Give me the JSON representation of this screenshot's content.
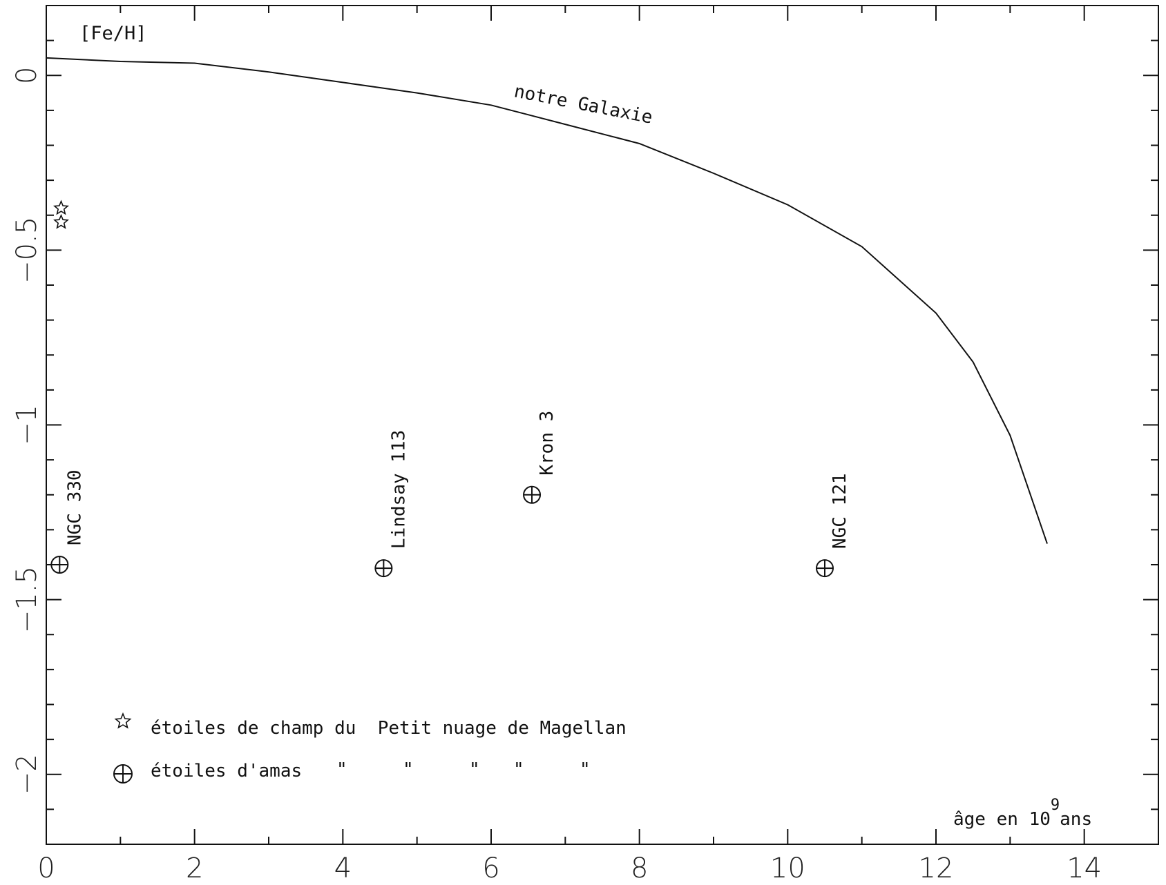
{
  "chart_data": {
    "type": "line",
    "ylabel": "[Fe/H]",
    "xlabel": "âge en 10⁹ans",
    "xlabel_parts": {
      "pre": "âge en 10",
      "exp": "9",
      "post": "ans"
    },
    "xlim": [
      0,
      15
    ],
    "ylim": [
      -2.2,
      0.2
    ],
    "x_ticks": [
      0,
      2,
      4,
      6,
      8,
      10,
      12,
      14
    ],
    "x_tick_labels": [
      "0",
      "2",
      "4",
      "6",
      "8",
      "10",
      "12",
      "14"
    ],
    "y_ticks": [
      0,
      -0.5,
      -1,
      -1.5,
      -2
    ],
    "y_tick_labels": [
      "0",
      "−0.5",
      "−1",
      "−1.5",
      "−2"
    ],
    "grid": false,
    "series": [
      {
        "name": "notre Galaxie",
        "x": [
          0,
          1,
          2,
          3,
          4,
          5,
          6,
          7,
          8,
          9,
          10,
          11,
          12,
          12.5,
          13,
          13.5
        ],
        "y": [
          0.05,
          0.04,
          0.035,
          0.01,
          -0.02,
          -0.05,
          -0.085,
          -0.14,
          -0.195,
          -0.28,
          -0.37,
          -0.49,
          -0.68,
          -0.82,
          -1.03,
          -1.34
        ]
      }
    ],
    "field_stars": {
      "label": "étoiles de champ du  Petit nuage de Magellan",
      "points": [
        {
          "x": 0.2,
          "y": -0.38
        },
        {
          "x": 0.2,
          "y": -0.42
        }
      ]
    },
    "clusters": {
      "label": "étoiles d'amas",
      "ditto": [
        "\"",
        "\"",
        "\"",
        "\"",
        "\""
      ],
      "points": [
        {
          "name": "NGC 330",
          "x": 0.18,
          "y": -1.4
        },
        {
          "name": "Lindsay 113",
          "x": 4.55,
          "y": -1.41
        },
        {
          "name": "Kron 3",
          "x": 6.55,
          "y": -1.2
        },
        {
          "name": "NGC 121",
          "x": 10.5,
          "y": -1.41
        }
      ]
    }
  }
}
